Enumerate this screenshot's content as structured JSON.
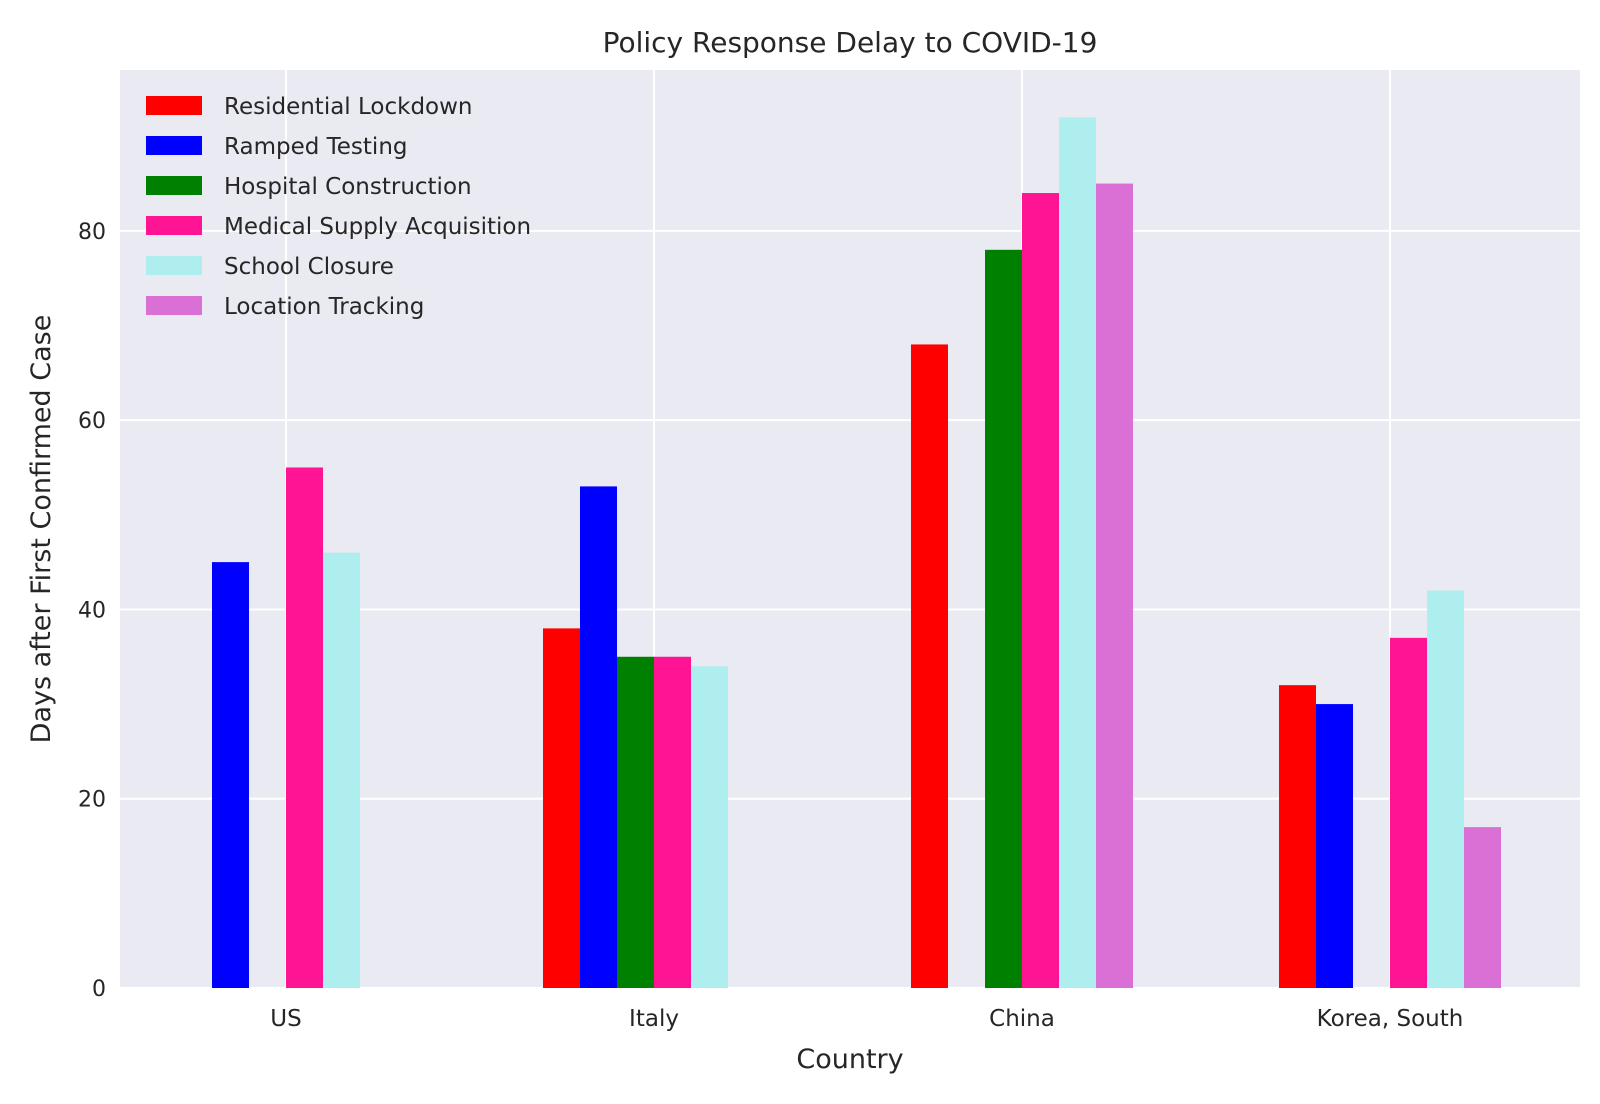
{
  "chart_data": {
    "type": "bar",
    "title": "Policy Response Delay to COVID-19",
    "xlabel": "Country",
    "ylabel": "Days after First Confirmed Case",
    "categories": [
      "US",
      "Italy",
      "China",
      "Korea, South"
    ],
    "ylim": [
      0,
      97
    ],
    "yticks": [
      0,
      20,
      40,
      60,
      80
    ],
    "grid": true,
    "legend_position": "top-left",
    "background": "#eaeaf2",
    "series": [
      {
        "name": "Residential Lockdown",
        "color": "#ff0000",
        "values": [
          null,
          38,
          68,
          32
        ]
      },
      {
        "name": "Ramped Testing",
        "color": "#0000ff",
        "values": [
          45,
          53,
          null,
          30
        ]
      },
      {
        "name": "Hospital Construction",
        "color": "#008000",
        "values": [
          null,
          35,
          78,
          null
        ]
      },
      {
        "name": "Medical Supply Acquisition",
        "color": "#ff1493",
        "values": [
          55,
          35,
          84,
          37
        ]
      },
      {
        "name": "School Closure",
        "color": "#afeeee",
        "values": [
          46,
          34,
          92,
          42
        ]
      },
      {
        "name": "Location Tracking",
        "color": "#da70d6",
        "values": [
          null,
          null,
          85,
          17
        ]
      }
    ]
  }
}
